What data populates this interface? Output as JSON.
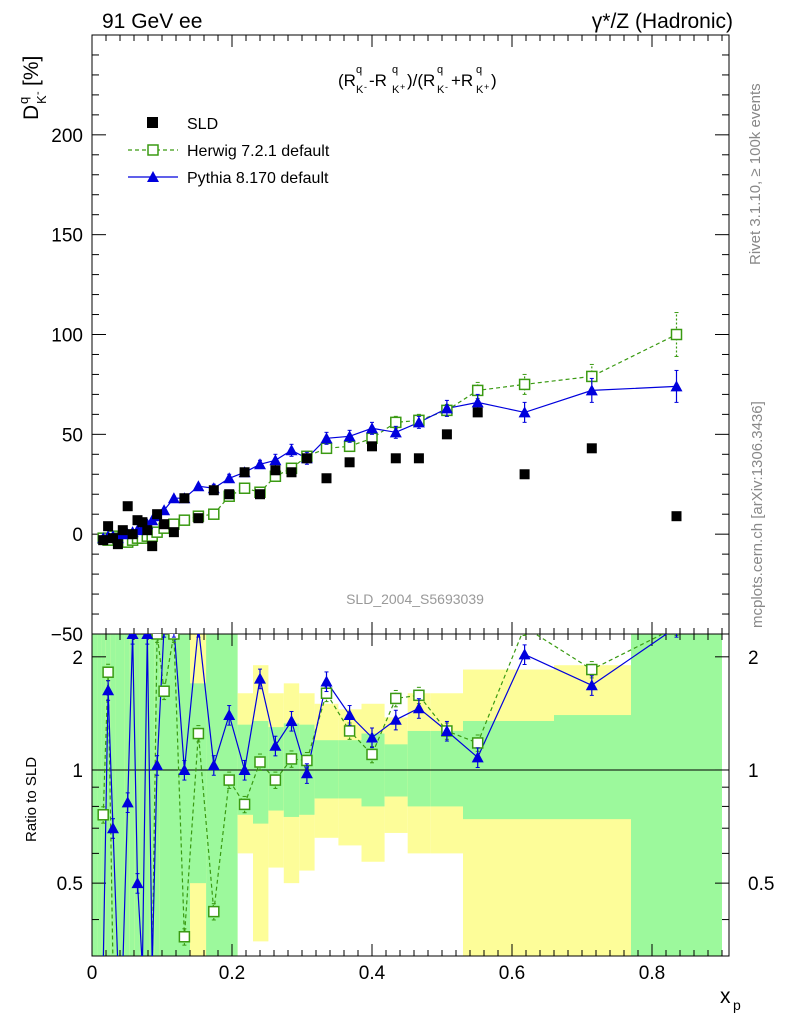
{
  "header": {
    "left_title": "91 GeV ee",
    "right_title": "γ*/Z (Hadronic)"
  },
  "side_labels": {
    "rivet": "Rivet 3.1.10, ≥ 100k events",
    "mcplots": "mcplots.cern.ch [arXiv:1306.3436]"
  },
  "watermark": "SLD_2004_S5693039",
  "formula": "(R_K-^q - R_K+^q)/(R_K-^q + R_K+^q)",
  "colors": {
    "data": "#000000",
    "herwig": "#3a9a12",
    "pythia": "#0000dd",
    "band_inner": "#9cf99c",
    "band_outer": "#fdfd99"
  },
  "chart_data": [
    {
      "type": "scatter",
      "title": "",
      "xlabel": "x_p",
      "ylabel": "D_K-^q [%]",
      "xlim": [
        0,
        0.91
      ],
      "ylim": [
        -50,
        250
      ],
      "yticks": [
        -50,
        0,
        50,
        100,
        150,
        200
      ],
      "xticks": [
        0,
        0.2,
        0.4,
        0.6,
        0.8
      ],
      "legend_position": "top-left",
      "series": [
        {
          "name": "SLD",
          "marker": "square-filled",
          "x": [
            0.016,
            0.023,
            0.03,
            0.037,
            0.044,
            0.051,
            0.058,
            0.065,
            0.072,
            0.079,
            0.086,
            0.093,
            0.103,
            0.117,
            0.132,
            0.152,
            0.174,
            0.196,
            0.218,
            0.24,
            0.262,
            0.285,
            0.307,
            0.335,
            0.368,
            0.4,
            0.434,
            0.467,
            0.507,
            0.551,
            0.618,
            0.714,
            0.835
          ],
          "y": [
            -3,
            4,
            -2,
            -5,
            2,
            14,
            0,
            7,
            6,
            2,
            -6,
            10,
            5,
            1,
            18,
            8,
            22,
            20,
            31,
            20,
            32,
            31,
            38,
            28,
            36,
            44,
            38,
            38,
            50,
            61,
            30,
            43,
            9
          ]
        },
        {
          "name": "Herwig 7.2.1 default",
          "marker": "square-open",
          "line": "dashed",
          "x": [
            0.016,
            0.023,
            0.03,
            0.037,
            0.044,
            0.051,
            0.058,
            0.065,
            0.072,
            0.079,
            0.086,
            0.093,
            0.103,
            0.117,
            0.132,
            0.152,
            0.174,
            0.196,
            0.218,
            0.24,
            0.262,
            0.285,
            0.307,
            0.335,
            0.368,
            0.4,
            0.434,
            0.467,
            0.507,
            0.551,
            0.618,
            0.714,
            0.835
          ],
          "y": [
            -2,
            -3,
            -1,
            -2,
            -3,
            -4,
            -3,
            -2,
            -2,
            -1,
            -1,
            1,
            3,
            5,
            7,
            9,
            10,
            19,
            23,
            21,
            29,
            33,
            39,
            43,
            44,
            48,
            56,
            57,
            62,
            72,
            75,
            79,
            100
          ],
          "yerr": [
            1,
            1,
            1,
            1,
            1,
            1,
            1,
            1,
            1,
            1,
            1,
            1,
            1,
            1,
            1,
            1,
            1,
            1,
            2,
            2,
            2,
            2,
            2,
            2,
            2,
            2,
            3,
            3,
            3,
            4,
            5,
            6,
            11
          ]
        },
        {
          "name": "Pythia 8.170 default",
          "marker": "triangle-filled",
          "line": "solid",
          "x": [
            0.016,
            0.023,
            0.03,
            0.037,
            0.044,
            0.051,
            0.058,
            0.065,
            0.072,
            0.079,
            0.086,
            0.093,
            0.103,
            0.117,
            0.132,
            0.152,
            0.174,
            0.196,
            0.218,
            0.24,
            0.262,
            0.285,
            0.307,
            0.335,
            0.368,
            0.4,
            0.434,
            0.467,
            0.507,
            0.551,
            0.618,
            0.714,
            0.835
          ],
          "y": [
            -2,
            -1,
            -1,
            -2,
            0,
            0,
            1,
            2,
            3,
            5,
            7,
            9,
            12,
            18,
            18,
            24,
            23,
            28,
            31,
            35,
            37,
            42,
            38,
            48,
            49,
            53,
            51,
            56,
            63,
            66,
            61,
            72,
            74
          ],
          "yerr": [
            1,
            1,
            1,
            1,
            1,
            1,
            1,
            1,
            1,
            1,
            1,
            1,
            1,
            1,
            1,
            1,
            2,
            2,
            2,
            2,
            3,
            3,
            3,
            3,
            3,
            3,
            3,
            3,
            4,
            4,
            5,
            6,
            8
          ]
        }
      ]
    },
    {
      "type": "line",
      "title": "",
      "ylabel": "Ratio to SLD",
      "xlabel": "x_p",
      "xlim": [
        0,
        0.91
      ],
      "ylim": [
        0.32,
        2.3
      ],
      "yscale": "log",
      "yticks": [
        0.5,
        1,
        2
      ],
      "reference_line": 1,
      "uncertainty_band": {
        "edges": [
          0,
          0.008,
          0.013,
          0.019,
          0.026,
          0.033,
          0.04,
          0.047,
          0.054,
          0.061,
          0.068,
          0.075,
          0.082,
          0.089,
          0.096,
          0.11,
          0.125,
          0.14,
          0.163,
          0.185,
          0.208,
          0.23,
          0.252,
          0.274,
          0.296,
          0.318,
          0.352,
          0.385,
          0.418,
          0.451,
          0.484,
          0.53,
          0.575,
          0.66,
          0.77,
          0.9
        ],
        "inner_low": [
          0.32,
          0.32,
          0.32,
          0.32,
          0.32,
          0.32,
          0.32,
          0.32,
          0.32,
          0.32,
          0.32,
          0.32,
          0.32,
          0.32,
          0.32,
          0.32,
          0.32,
          0.5,
          0.32,
          0.32,
          0.76,
          0.72,
          0.78,
          0.75,
          0.76,
          0.84,
          0.84,
          0.8,
          0.85,
          0.8,
          0.8,
          0.74,
          0.74,
          0.74,
          0.32
        ],
        "inner_high": [
          2.3,
          2.3,
          2.3,
          2.3,
          2.3,
          2.3,
          2.3,
          2.3,
          2.3,
          2.3,
          2.3,
          2.3,
          2.3,
          2.3,
          2.3,
          2.3,
          2.3,
          1.7,
          2.3,
          2.3,
          1.32,
          1.35,
          1.3,
          1.33,
          1.32,
          1.2,
          1.2,
          1.25,
          1.17,
          1.27,
          1.27,
          1.35,
          1.35,
          1.4,
          2.3
        ],
        "outer_low": [
          0.32,
          0.32,
          0.32,
          0.32,
          0.32,
          0.32,
          0.32,
          0.32,
          0.32,
          0.32,
          0.32,
          0.32,
          0.32,
          0.32,
          0.32,
          0.32,
          0.32,
          0.32,
          0.32,
          0.32,
          0.6,
          0.35,
          0.55,
          0.5,
          0.54,
          0.66,
          0.63,
          0.57,
          0.68,
          0.6,
          0.6,
          0.32,
          0.32,
          0.32,
          0.32
        ],
        "outer_high": [
          2.3,
          2.3,
          2.3,
          2.3,
          2.3,
          2.3,
          2.3,
          2.3,
          2.3,
          2.3,
          2.3,
          2.3,
          2.3,
          2.3,
          2.3,
          2.3,
          2.3,
          2.3,
          2.3,
          2.3,
          1.6,
          1.9,
          1.6,
          1.7,
          1.6,
          1.5,
          1.45,
          1.5,
          1.38,
          1.6,
          1.6,
          1.85,
          1.85,
          1.9,
          2.3
        ]
      },
      "series": [
        {
          "name": "Herwig 7.2.1 default",
          "x": [
            0.016,
            0.023,
            0.03,
            0.037,
            0.044,
            0.051,
            0.058,
            0.065,
            0.072,
            0.079,
            0.086,
            0.093,
            0.103,
            0.117,
            0.132,
            0.152,
            0.174,
            0.196,
            0.218,
            0.24,
            0.262,
            0.285,
            0.307,
            0.335,
            0.368,
            0.4,
            0.434,
            0.467,
            0.507,
            0.551,
            0.618,
            0.714,
            0.835
          ],
          "y": [
            0.76,
            1.82,
            0.3,
            0.3,
            0.3,
            0.3,
            0.3,
            0.3,
            0.3,
            0.3,
            0.3,
            2.3,
            1.62,
            2.3,
            0.36,
            1.25,
            0.42,
            0.94,
            0.81,
            1.05,
            0.94,
            1.07,
            1.06,
            1.6,
            1.27,
            1.1,
            1.55,
            1.58,
            1.27,
            1.18,
            2.4,
            1.85,
            2.4
          ]
        },
        {
          "name": "Pythia 8.170 default",
          "x": [
            0.016,
            0.023,
            0.03,
            0.037,
            0.044,
            0.051,
            0.058,
            0.065,
            0.072,
            0.079,
            0.086,
            0.093,
            0.103,
            0.117,
            0.132,
            0.152,
            0.174,
            0.196,
            0.218,
            0.24,
            0.262,
            0.285,
            0.307,
            0.335,
            0.368,
            0.4,
            0.434,
            0.467,
            0.507,
            0.551,
            0.618,
            0.714,
            0.835
          ],
          "y": [
            0.3,
            1.63,
            0.7,
            0.3,
            0.3,
            0.82,
            2.3,
            0.5,
            0.3,
            2.3,
            0.3,
            1.03,
            2.4,
            2.4,
            1.0,
            2.4,
            1.03,
            1.4,
            1.0,
            1.75,
            1.16,
            1.35,
            0.98,
            1.72,
            1.4,
            1.22,
            1.36,
            1.46,
            1.27,
            1.08,
            2.03,
            1.68,
            2.4
          ]
        }
      ]
    }
  ]
}
